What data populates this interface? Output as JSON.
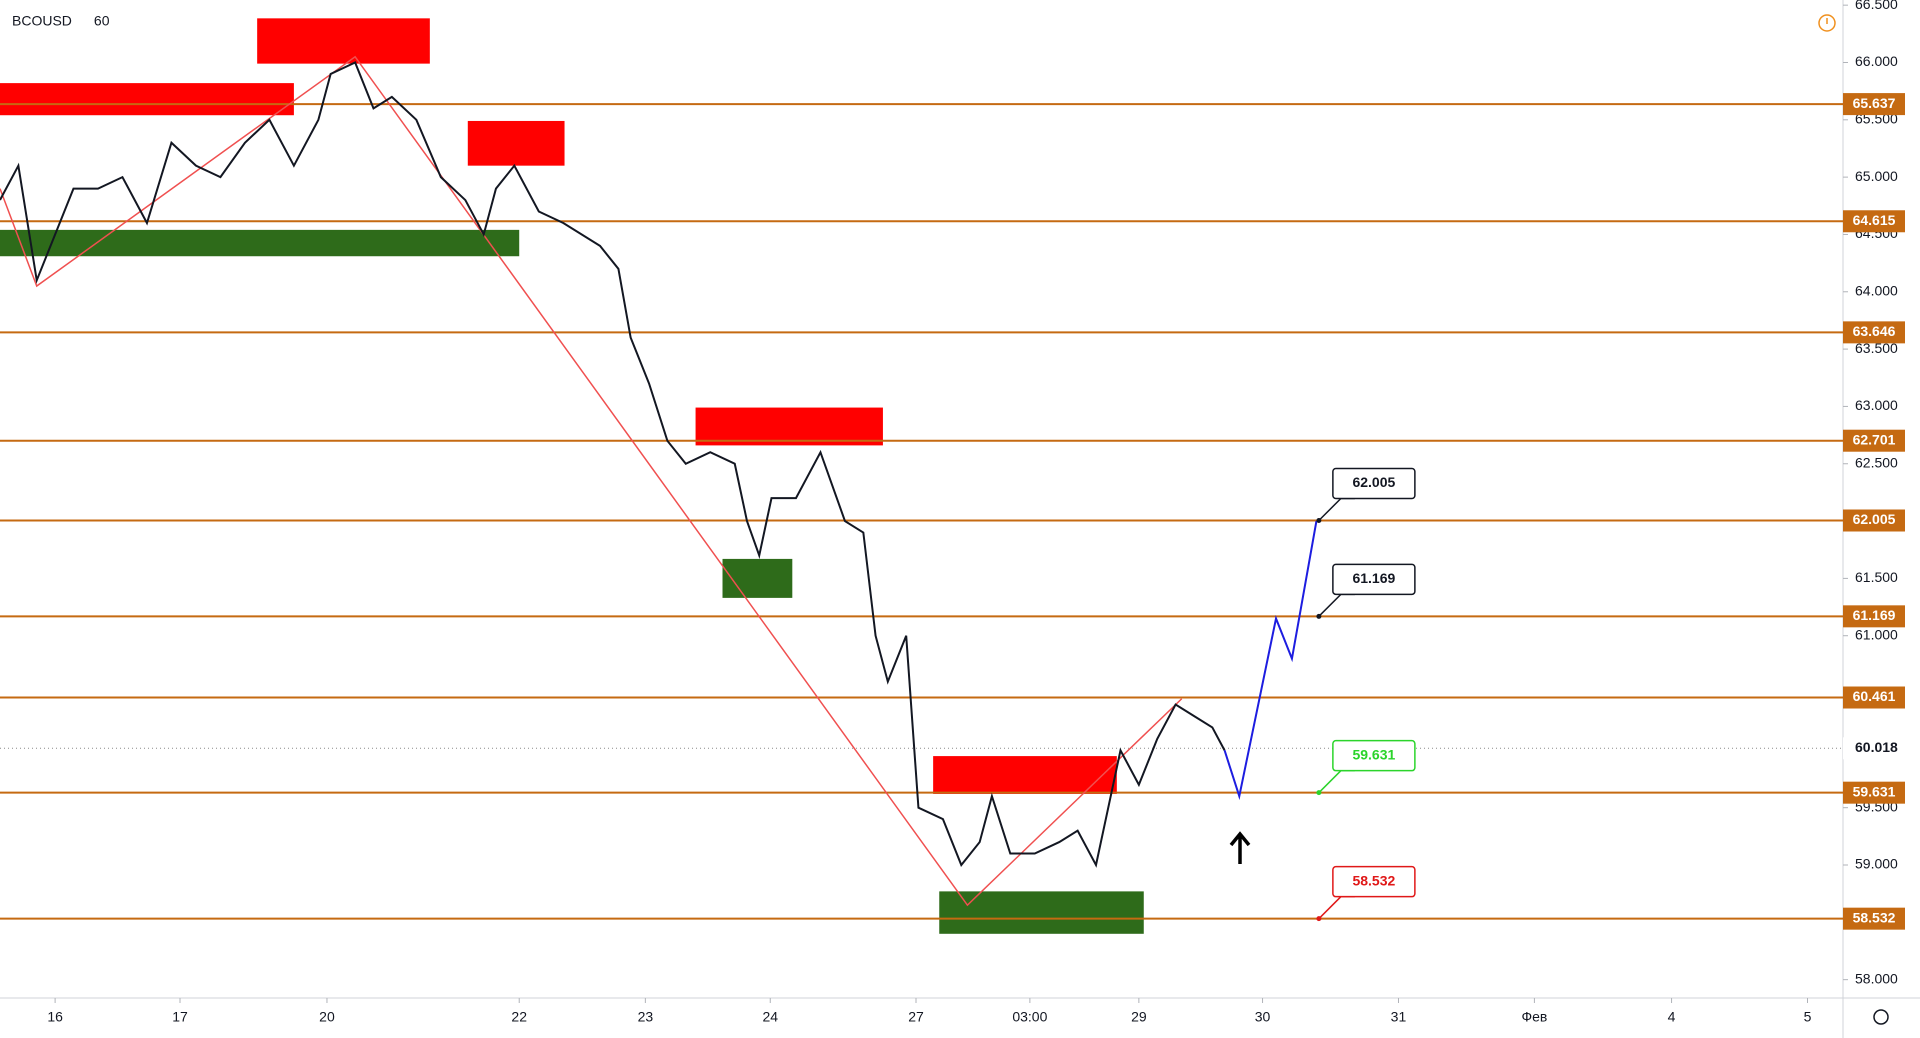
{
  "chart_data": {
    "type": "line",
    "symbol": "BCOUSD",
    "interval": "60",
    "xlim": [
      0,
      301
    ],
    "ylim": [
      57.84,
      66.545
    ],
    "xticks": [
      {
        "value": 9,
        "label": "16"
      },
      {
        "value": 29.4,
        "label": "17"
      },
      {
        "value": 53.4,
        "label": "20"
      },
      {
        "value": 84.8,
        "label": "22"
      },
      {
        "value": 105.4,
        "label": "23"
      },
      {
        "value": 125.8,
        "label": "24"
      },
      {
        "value": 149.6,
        "label": "27"
      },
      {
        "value": 168.2,
        "label": "03:00"
      },
      {
        "value": 186,
        "label": "29"
      },
      {
        "value": 206.2,
        "label": "30"
      },
      {
        "value": 228.4,
        "label": "31"
      },
      {
        "value": 250.6,
        "label": "Фев"
      },
      {
        "value": 273,
        "label": "4"
      },
      {
        "value": 295.2,
        "label": "5"
      }
    ],
    "yticks": [
      {
        "value": 58,
        "label": "58.000"
      },
      {
        "value": 59,
        "label": "59.000"
      },
      {
        "value": 59.5,
        "label": "59.500"
      },
      {
        "value": 61,
        "label": "61.000"
      },
      {
        "value": 61.5,
        "label": "61.500"
      },
      {
        "value": 62.5,
        "label": "62.500"
      },
      {
        "value": 63,
        "label": "63.000"
      },
      {
        "value": 63.5,
        "label": "63.500"
      },
      {
        "value": 64,
        "label": "64.000"
      },
      {
        "value": 64.5,
        "label": "64.500"
      },
      {
        "value": 65,
        "label": "65.000"
      },
      {
        "value": 65.5,
        "label": "65.500"
      },
      {
        "value": 66,
        "label": "66.000"
      },
      {
        "value": 66.5,
        "label": "66.500"
      }
    ],
    "price": {
      "color": "#131722",
      "x": [
        0,
        3,
        6,
        9,
        12,
        16,
        20,
        24,
        28,
        32,
        36,
        40,
        44,
        48,
        52,
        54,
        58,
        61,
        64,
        68,
        72,
        76,
        79,
        81,
        84,
        88,
        92,
        98,
        101,
        103,
        106,
        109,
        112,
        116,
        120,
        122,
        124,
        126,
        130,
        134,
        138,
        141,
        143,
        145,
        148,
        150,
        154,
        157,
        160,
        162,
        165,
        169,
        173,
        176,
        179,
        181,
        183,
        186,
        189,
        192,
        195,
        198,
        200
      ],
      "values": [
        64.8,
        65.1,
        64.1,
        64.5,
        64.9,
        64.9,
        65.0,
        64.6,
        65.3,
        65.1,
        65.0,
        65.3,
        65.5,
        65.1,
        65.5,
        65.9,
        66.0,
        65.6,
        65.7,
        65.5,
        65.0,
        64.8,
        64.5,
        64.9,
        65.1,
        64.7,
        64.6,
        64.4,
        64.2,
        63.6,
        63.2,
        62.7,
        62.5,
        62.6,
        62.5,
        62.0,
        61.7,
        62.2,
        62.2,
        62.6,
        62.0,
        61.9,
        61.0,
        60.6,
        61.0,
        59.5,
        59.4,
        59.0,
        59.2,
        59.6,
        59.1,
        59.1,
        59.2,
        59.3,
        59.0,
        59.5,
        60.0,
        59.7,
        60.1,
        60.4,
        60.3,
        60.2,
        60.0
      ]
    },
    "levels": {
      "color": "#c56a12",
      "values": [
        65.637,
        64.615,
        63.646,
        62.701,
        62.005,
        61.169,
        60.461,
        59.631,
        58.532
      ]
    },
    "current_price": {
      "value": 60.018,
      "color": "#8a8a8a"
    },
    "zigzag": {
      "color": "#f05050",
      "x": [
        0,
        6,
        58,
        158,
        193
      ],
      "values": [
        64.9,
        64.05,
        66.05,
        58.65,
        60.45
      ]
    },
    "projection": {
      "color": "#1d1de0",
      "x": [
        200,
        202.4,
        208.4,
        211,
        215
      ],
      "values": [
        60.0,
        59.6,
        61.15,
        60.8,
        62.0
      ]
    },
    "zones": [
      {
        "color": "#ff0000",
        "x": [
          0,
          48
        ],
        "y": [
          65.82,
          65.54
        ]
      },
      {
        "color": "#ff0000",
        "x": [
          42,
          70.2
        ],
        "y": [
          66.385,
          65.99
        ]
      },
      {
        "color": "#ff0000",
        "x": [
          76.4,
          92.2
        ],
        "y": [
          65.49,
          65.1
        ]
      },
      {
        "color": "#ff0000",
        "x": [
          113.6,
          144.2
        ],
        "y": [
          62.99,
          62.66
        ]
      },
      {
        "color": "#ff0000",
        "x": [
          152.4,
          182.4
        ],
        "y": [
          59.95,
          59.62
        ]
      },
      {
        "color": "#2e6b1a",
        "x": [
          0,
          84.8
        ],
        "y": [
          64.54,
          64.31
        ]
      },
      {
        "color": "#2e6b1a",
        "x": [
          118,
          129.4
        ],
        "y": [
          61.67,
          61.33
        ]
      },
      {
        "color": "#2e6b1a",
        "x": [
          153.4,
          186.8
        ],
        "y": [
          58.77,
          58.4
        ]
      }
    ],
    "callouts": [
      {
        "x": 215.4,
        "value": 62.005,
        "color": "#131722"
      },
      {
        "x": 215.4,
        "value": 61.169,
        "color": "#131722"
      },
      {
        "x": 215.4,
        "value": 59.631,
        "color": "#2bd42b"
      },
      {
        "x": 215.4,
        "value": 58.532,
        "color": "#e01818"
      }
    ]
  }
}
